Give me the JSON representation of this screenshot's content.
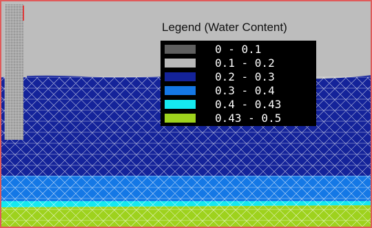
{
  "legend": {
    "title": "Legend (Water Content)",
    "items": [
      {
        "label": "0 - 0.1",
        "color": "#5f5f5f"
      },
      {
        "label": "0.1 - 0.2",
        "color": "#b9b9b9"
      },
      {
        "label": "0.2 - 0.3",
        "color": "#14239a"
      },
      {
        "label": "0.3 - 0.4",
        "color": "#1478e6"
      },
      {
        "label": "0.4 - 0.43",
        "color": "#15e9f0"
      },
      {
        "label": "0.43 - 0.5",
        "color": "#9ed21d"
      }
    ]
  },
  "colors": {
    "mesh_line": "#ffffff",
    "border": "#e05a5a",
    "background": "#bdbdbd"
  }
}
